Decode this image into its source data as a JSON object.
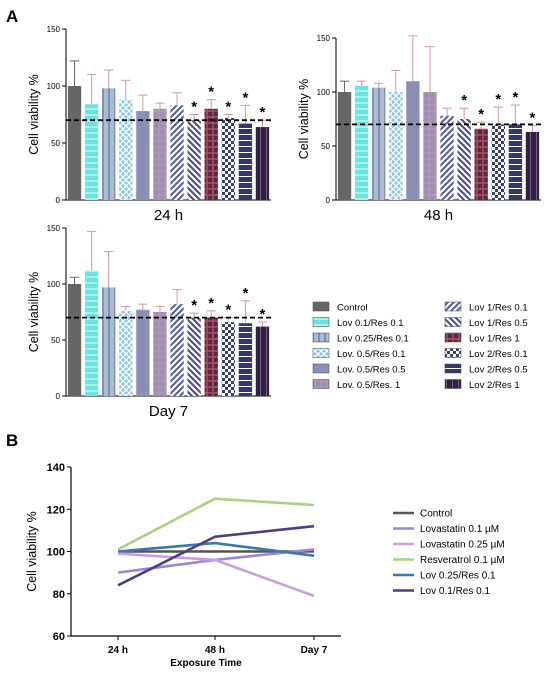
{
  "panel_a_letter": "A",
  "panel_b_letter": "B",
  "colors": {
    "Control": "#666666",
    "Lov 0.1/Res 0.1": "#66e6e0",
    "Lov 0.25/Res 0.1": "#a9bcd4",
    "Lov. 0.5/Res 0.1": "#8fc8e6",
    "Lov. 0.5/Res 0.5": "#8c8fb5",
    "Lov. 0.5/Res. 1": "#9a8fb8",
    "Lov 1/Res 0.1": "#5f6296",
    "Lov 1/Res 0.5": "#4f5285",
    "Lov 1/Res 1": "#b04f62",
    "Lov 2/Res 0.1": "#3c3e77",
    "Lov 2/Res 0.5": "#34366e",
    "Lov 2/Res 1": "#2f2240",
    "err": "#cc9aa0",
    "line_Control": "#555555",
    "line_Lovastatin 0.1 µM": "#9a87d6",
    "line_Lovastatin 0.25 µM": "#cc9be3",
    "line_Resveratrol 0.1 µM": "#a8d27d",
    "line_Lov 0.25/Res 0.1": "#3a78b0",
    "line_Lov 0.1/Res 0.1": "#4b3d8a"
  },
  "legend_a": {
    "col1": [
      "Control",
      "Lov 0.1/Res 0.1",
      "Lov 0.25/Res 0.1",
      "Lov. 0.5/Res 0.1",
      "Lov. 0.5/Res 0.5",
      "Lov. 0.5/Res. 1"
    ],
    "col2": [
      "Lov 1/Res 0.1",
      "Lov 1/Res 0.5",
      "Lov 1/Res 1",
      "Lov 2/Res 0.1",
      "Lov 2/Res 0.5",
      "Lov 2/Res 1"
    ]
  },
  "chart_data": [
    {
      "type": "bar",
      "panel": "A",
      "title": "24 h",
      "ylabel": "Cell viability %",
      "ylim": [
        0,
        150
      ],
      "yticks": [
        0,
        50,
        100,
        150
      ],
      "threshold": 70,
      "categories": [
        "Control",
        "Lov 0.1/Res 0.1",
        "Lov 0.25/Res 0.1",
        "Lov. 0.5/Res 0.1",
        "Lov. 0.5/Res 0.5",
        "Lov. 0.5/Res. 1",
        "Lov 1/Res 0.1",
        "Lov 1/Res 0.5",
        "Lov 1/Res 1",
        "Lov 2/Res 0.1",
        "Lov 2/Res 0.5",
        "Lov 2/Res 1"
      ],
      "values": [
        100,
        84,
        98,
        88,
        78,
        80,
        83,
        70,
        80,
        72,
        67,
        64
      ],
      "errors": [
        22,
        26,
        16,
        17,
        14,
        5,
        11,
        5,
        8,
        3,
        16,
        6
      ],
      "significant": [
        false,
        false,
        false,
        false,
        false,
        false,
        false,
        true,
        true,
        true,
        true,
        true
      ]
    },
    {
      "type": "bar",
      "panel": "A",
      "title": "48 h",
      "ylabel": "Cell viability %",
      "ylim": [
        0,
        150
      ],
      "yticks": [
        0,
        50,
        100,
        150
      ],
      "threshold": 70,
      "categories": [
        "Control",
        "Lov 0.1/Res 0.1",
        "Lov 0.25/Res 0.1",
        "Lov. 0.5/Res 0.1",
        "Lov. 0.5/Res 0.5",
        "Lov. 0.5/Res. 1",
        "Lov 1/Res 0.1",
        "Lov 1/Res 0.5",
        "Lov 1/Res 1",
        "Lov 2/Res 0.1",
        "Lov 2/Res 0.5",
        "Lov 2/Res 1"
      ],
      "values": [
        100,
        106,
        104,
        100,
        110,
        100,
        78,
        75,
        66,
        70,
        70,
        63
      ],
      "errors": [
        10,
        4,
        4,
        20,
        42,
        42,
        7,
        10,
        6,
        16,
        18,
        6
      ],
      "significant": [
        false,
        false,
        false,
        false,
        false,
        false,
        false,
        true,
        true,
        true,
        true,
        true
      ]
    },
    {
      "type": "bar",
      "panel": "A",
      "title": "Day 7",
      "ylabel": "Cell viability %",
      "ylim": [
        0,
        150
      ],
      "yticks": [
        0,
        50,
        100,
        150
      ],
      "threshold": 70,
      "categories": [
        "Control",
        "Lov 0.1/Res 0.1",
        "Lov 0.25/Res 0.1",
        "Lov. 0.5/Res 0.1",
        "Lov. 0.5/Res 0.5",
        "Lov. 0.5/Res. 1",
        "Lov 1/Res 0.1",
        "Lov 1/Res 0.5",
        "Lov 1/Res 1",
        "Lov 2/Res 0.1",
        "Lov 2/Res 0.5",
        "Lov 2/Res 1"
      ],
      "values": [
        100,
        112,
        97,
        76,
        77,
        75,
        82,
        70,
        70,
        66,
        65,
        62
      ],
      "errors": [
        6,
        35,
        32,
        4,
        5,
        5,
        13,
        4,
        6,
        4,
        20,
        4
      ],
      "significant": [
        false,
        false,
        false,
        false,
        false,
        false,
        false,
        true,
        true,
        true,
        true,
        true
      ]
    },
    {
      "type": "line",
      "panel": "B",
      "xlabel": "Exposure Time",
      "ylabel": "Cell viability %",
      "ylim": [
        60,
        140
      ],
      "yticks": [
        60,
        80,
        100,
        120,
        140
      ],
      "categories": [
        "24 h",
        "48 h",
        "Day 7"
      ],
      "legend_position": "right",
      "series": [
        {
          "name": "Control",
          "values": [
            100,
            100,
            100
          ]
        },
        {
          "name": "Lovastatin 0.1 µM",
          "values": [
            90,
            96,
            101
          ]
        },
        {
          "name": "Lovastatin 0.25 µM",
          "values": [
            99,
            96,
            79
          ]
        },
        {
          "name": "Resveratrol 0.1 µM",
          "values": [
            101,
            125,
            122
          ]
        },
        {
          "name": "Lov 0.25/Res 0.1",
          "values": [
            100,
            104,
            98
          ]
        },
        {
          "name": "Lov 0.1/Res 0.1",
          "values": [
            84,
            107,
            112
          ]
        }
      ]
    }
  ]
}
